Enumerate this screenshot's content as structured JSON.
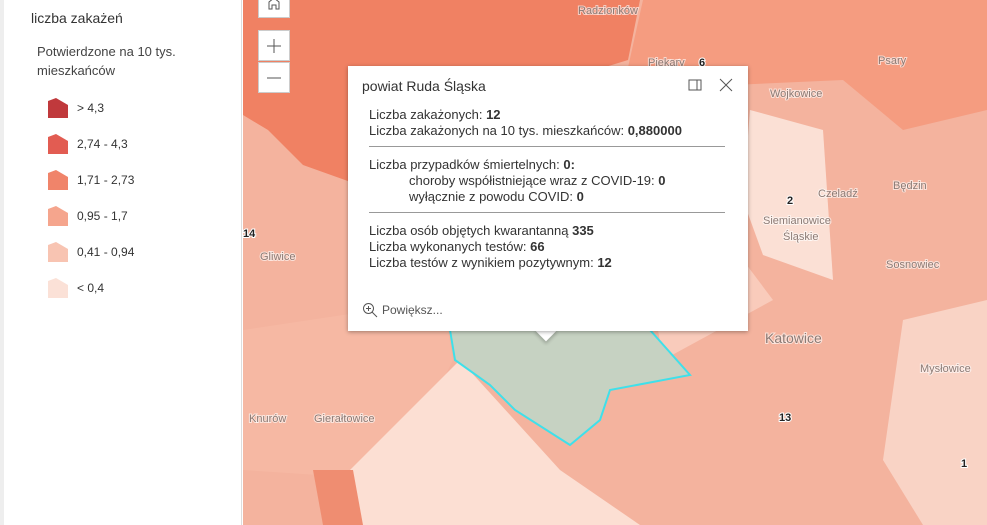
{
  "legend": {
    "title": "liczba zakażeń",
    "subtitle": "Potwierdzone na 10 tys. mieszkańców",
    "items": [
      {
        "label": "> 4,3",
        "color": "#c0393c"
      },
      {
        "label": "2,74 - 4,3",
        "color": "#e25c52"
      },
      {
        "label": "1,71 - 2,73",
        "color": "#f0846a"
      },
      {
        "label": "0,95 - 1,7",
        "color": "#f5a58d"
      },
      {
        "label": "0,41 - 0,94",
        "color": "#f8c4b2"
      },
      {
        "label": "< 0,4",
        "color": "#fbe1d7"
      }
    ]
  },
  "map": {
    "places": [
      "Radzionków",
      "Piekary",
      "Psary",
      "Wojkowice",
      "Czeladź",
      "Będzin",
      "Siemianowice",
      "Śląskie",
      "Sosnowiec",
      "Katowice",
      "Mysłowice",
      "Gliwice",
      "Knurów",
      "Gierałtowice"
    ],
    "counts": [
      6,
      2,
      14,
      13,
      1
    ]
  },
  "popup": {
    "title": "powiat Ruda Śląska",
    "sections": [
      {
        "rows": [
          {
            "label": "Liczba zakażonych:",
            "value": 12
          },
          {
            "label": "Liczba zakażonych na 10 tys. mieszkańców:",
            "value": "0,880000"
          }
        ]
      },
      {
        "rows": [
          {
            "label": "Liczba przypadków śmiertelnych:",
            "value": "0:"
          },
          {
            "label": "choroby współistniejące wraz z COVID-19:",
            "value": 0
          },
          {
            "label": "wyłącznie z powodu COVID:",
            "value": 0
          }
        ]
      },
      {
        "rows": [
          {
            "label": "Liczba osób objętych kwarantanną",
            "value": 335
          },
          {
            "label": "Liczba wykonanych testów:",
            "value": 66
          },
          {
            "label": "Liczba testów z wynikiem pozytywnym:",
            "value": 12
          }
        ]
      }
    ],
    "zoom": "Powiększ..."
  }
}
